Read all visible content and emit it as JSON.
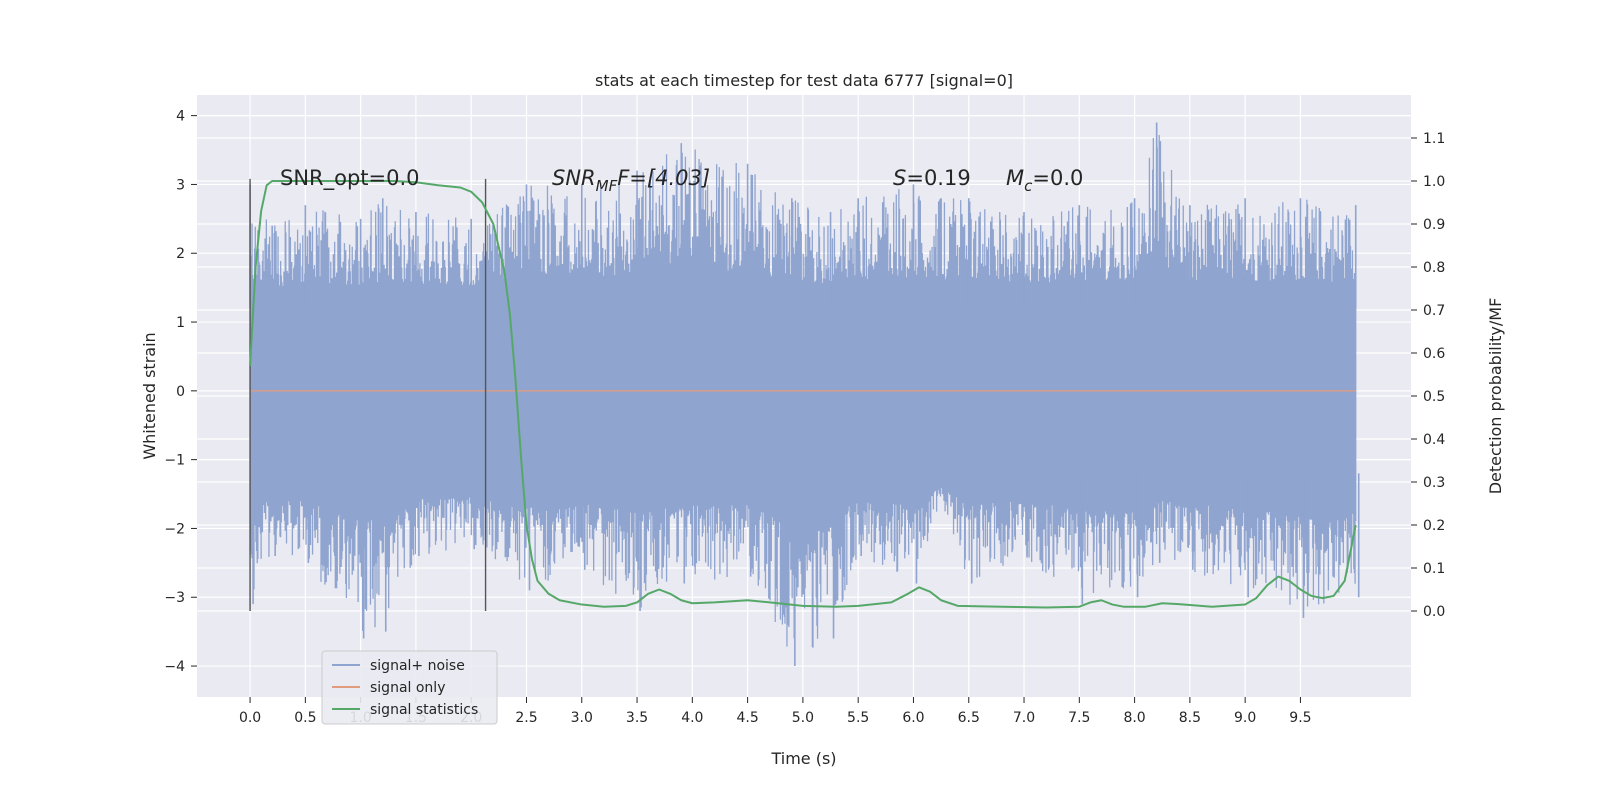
{
  "chart_data": {
    "type": "line",
    "title": "stats at each timestep for test data 6777 [signal=0]",
    "xlabel": "Time (s)",
    "ylabel": "Whitened strain",
    "y2label": "Detection probability/MF",
    "xlim": [
      -0.48,
      10.5
    ],
    "ylim": [
      -4.45,
      4.3
    ],
    "y2lim": [
      -0.2,
      1.2
    ],
    "xticks": [
      "0.0",
      "0.5",
      "1.0",
      "1.5",
      "2.0",
      "2.5",
      "3.0",
      "3.5",
      "4.0",
      "4.5",
      "5.0",
      "5.5",
      "6.0",
      "6.5",
      "7.0",
      "7.5",
      "8.0",
      "8.5",
      "9.0",
      "9.5"
    ],
    "yticks": [
      "−4",
      "−3",
      "−2",
      "−1",
      "0",
      "1",
      "2",
      "3",
      "4"
    ],
    "y2ticks": [
      "0.0",
      "0.1",
      "0.2",
      "0.3",
      "0.4",
      "0.5",
      "0.6",
      "0.7",
      "0.8",
      "0.9",
      "1.0",
      "1.1"
    ],
    "grid": true,
    "legend_position": "lower-left",
    "colors": {
      "noise": "#8fa4cf",
      "signal": "#e19c80",
      "stats": "#55a868",
      "background": "#eaeaf2",
      "grid": "#ffffff"
    },
    "annotations": {
      "snr_opt": "SNR_opt=0.0",
      "snr_mf_prefix": "SNR",
      "snr_mf_sub": "MF",
      "snr_mf_rest": "F=[4.03]",
      "s_prefix": "S",
      "s_rest": "=0.19",
      "mc_prefix": "M",
      "mc_sub": "c",
      "mc_rest": "=0.0"
    },
    "vertical_lines_x": [
      0.0,
      2.13
    ],
    "series": [
      {
        "name": "signal+ noise",
        "x_range": [
          0.0,
          10.0
        ],
        "envelope_points": [
          [
            0.0,
            3.0,
            -3.1
          ],
          [
            0.2,
            2.4,
            -2.4
          ],
          [
            0.5,
            2.7,
            -2.5
          ],
          [
            1.0,
            2.5,
            -3.6
          ],
          [
            1.2,
            2.8,
            -3.5
          ],
          [
            1.5,
            2.6,
            -2.4
          ],
          [
            2.0,
            2.5,
            -2.3
          ],
          [
            2.5,
            3.0,
            -2.9
          ],
          [
            3.0,
            3.0,
            -2.6
          ],
          [
            3.5,
            3.2,
            -3.2
          ],
          [
            3.9,
            3.6,
            -2.8
          ],
          [
            4.5,
            3.3,
            -2.7
          ],
          [
            4.9,
            2.8,
            -4.0
          ],
          [
            5.25,
            2.6,
            -3.6
          ],
          [
            5.5,
            2.8,
            -2.4
          ],
          [
            6.0,
            3.0,
            -2.8
          ],
          [
            6.25,
            2.8,
            -1.6
          ],
          [
            6.5,
            2.8,
            -2.8
          ],
          [
            7.0,
            2.6,
            -2.4
          ],
          [
            7.5,
            2.7,
            -3.1
          ],
          [
            8.0,
            2.8,
            -3.0
          ],
          [
            8.2,
            3.9,
            -2.5
          ],
          [
            8.5,
            2.7,
            -2.6
          ],
          [
            9.0,
            2.8,
            -3.0
          ],
          [
            9.5,
            2.8,
            -3.3
          ],
          [
            10.0,
            2.7,
            -3.0
          ]
        ]
      },
      {
        "name": "signal only",
        "x": [
          0.0,
          10.0
        ],
        "y": [
          0.0,
          0.0
        ]
      },
      {
        "name": "signal statistics",
        "x": [
          0.0,
          0.05,
          0.1,
          0.15,
          0.2,
          0.3,
          0.5,
          1.0,
          1.3,
          1.5,
          1.7,
          1.9,
          2.0,
          2.1,
          2.2,
          2.3,
          2.35,
          2.4,
          2.45,
          2.5,
          2.55,
          2.6,
          2.7,
          2.8,
          3.0,
          3.2,
          3.4,
          3.5,
          3.6,
          3.7,
          3.8,
          3.9,
          4.0,
          4.2,
          4.5,
          4.7,
          5.0,
          5.3,
          5.5,
          5.8,
          5.95,
          6.05,
          6.15,
          6.25,
          6.4,
          6.8,
          7.2,
          7.5,
          7.6,
          7.7,
          7.8,
          7.9,
          8.1,
          8.25,
          8.4,
          8.7,
          9.0,
          9.1,
          9.2,
          9.3,
          9.4,
          9.5,
          9.6,
          9.7,
          9.8,
          9.9,
          10.0
        ],
        "y": [
          0.57,
          0.8,
          0.93,
          0.99,
          1.0,
          1.0,
          1.0,
          1.0,
          1.0,
          0.997,
          0.99,
          0.985,
          0.975,
          0.95,
          0.9,
          0.79,
          0.69,
          0.54,
          0.36,
          0.2,
          0.12,
          0.07,
          0.04,
          0.025,
          0.015,
          0.01,
          0.012,
          0.02,
          0.04,
          0.05,
          0.04,
          0.025,
          0.018,
          0.02,
          0.025,
          0.02,
          0.012,
          0.01,
          0.012,
          0.02,
          0.04,
          0.055,
          0.045,
          0.025,
          0.012,
          0.01,
          0.008,
          0.01,
          0.02,
          0.025,
          0.015,
          0.01,
          0.01,
          0.018,
          0.016,
          0.01,
          0.015,
          0.03,
          0.06,
          0.08,
          0.07,
          0.05,
          0.035,
          0.03,
          0.035,
          0.07,
          0.2
        ]
      }
    ]
  }
}
